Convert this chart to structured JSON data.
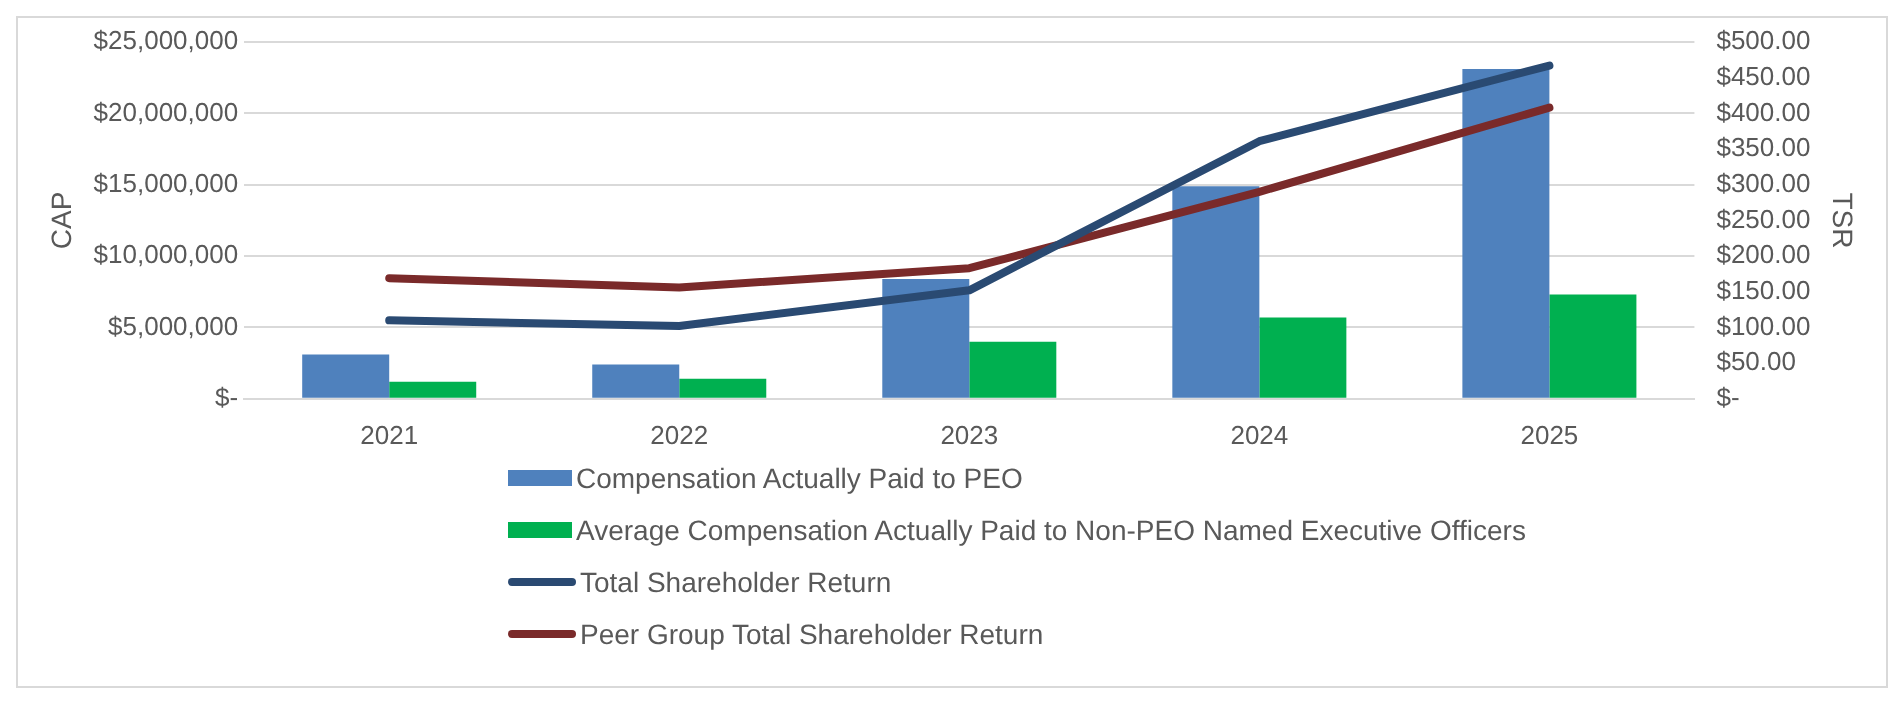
{
  "chart_data": {
    "type": "bar",
    "ylabel": "CAP",
    "y2label": "TSR",
    "categories": [
      "2021",
      "2022",
      "2023",
      "2024",
      "2025"
    ],
    "series": [
      {
        "name": "Compensation Actually Paid to PEO",
        "color": "#4f81bd",
        "values": [
          3100000,
          2400000,
          8400000,
          14900000,
          23100000
        ]
      },
      {
        "name": "Average Compensation Actually Paid to Non-PEO Named Executive Officers",
        "color": "#00b050",
        "values": [
          1200000,
          1400000,
          4000000,
          5700000,
          7300000
        ]
      },
      {
        "name": "Total Shareholder Return",
        "type": "line",
        "axis": "y2",
        "color": "#2a4a72",
        "values": [
          110,
          102,
          152,
          361,
          467
        ]
      },
      {
        "name": "Peer Group Total Shareholder Return",
        "type": "line",
        "axis": "y2",
        "color": "#7a2a2a",
        "values": [
          169,
          156,
          183,
          290,
          408
        ]
      }
    ],
    "ylim": [
      0,
      25000000
    ],
    "yticks": [
      {
        "value": 0,
        "label": "$-"
      },
      {
        "value": 5000000,
        "label": "$5,000,000"
      },
      {
        "value": 10000000,
        "label": "$10,000,000"
      },
      {
        "value": 15000000,
        "label": "$15,000,000"
      },
      {
        "value": 20000000,
        "label": "$20,000,000"
      },
      {
        "value": 25000000,
        "label": "$25,000,000"
      }
    ],
    "y2lim": [
      0,
      500
    ],
    "y2ticks": [
      {
        "value": 0,
        "label": "$-"
      },
      {
        "value": 50,
        "label": "$50.00"
      },
      {
        "value": 100,
        "label": "$100.00"
      },
      {
        "value": 150,
        "label": "$150.00"
      },
      {
        "value": 200,
        "label": "$200.00"
      },
      {
        "value": 250,
        "label": "$250.00"
      },
      {
        "value": 300,
        "label": "$300.00"
      },
      {
        "value": 350,
        "label": "$350.00"
      },
      {
        "value": 400,
        "label": "$400.00"
      },
      {
        "value": 450,
        "label": "$450.00"
      },
      {
        "value": 500,
        "label": "$500.00"
      }
    ],
    "grid": "y",
    "legend": "bottom"
  }
}
